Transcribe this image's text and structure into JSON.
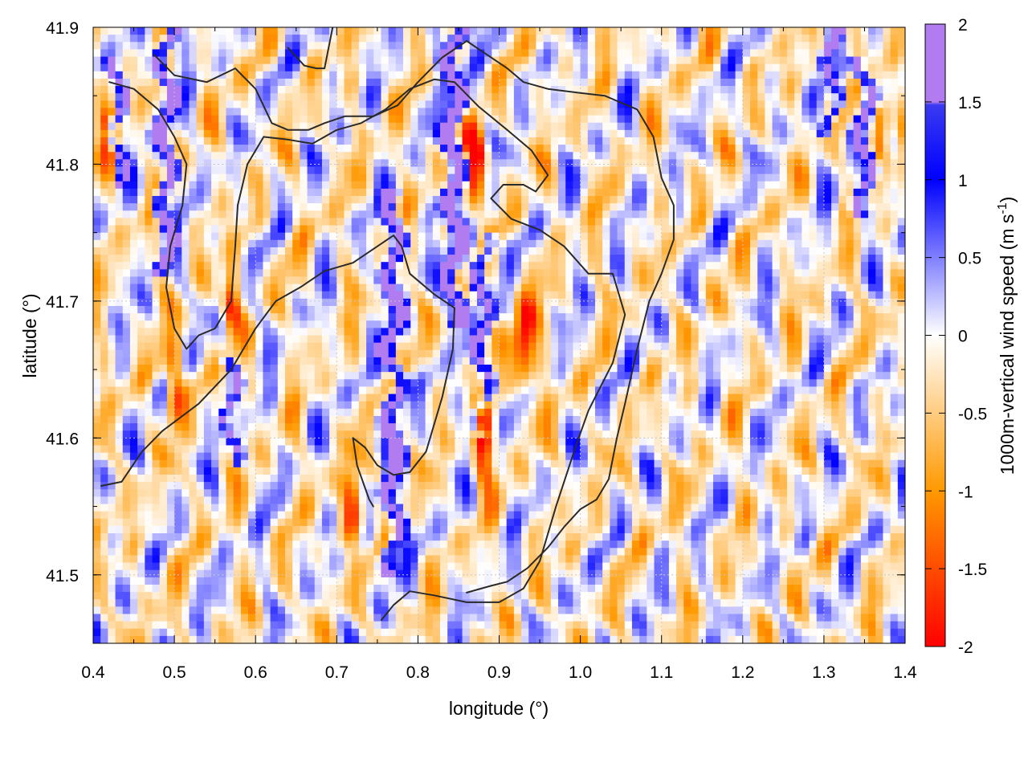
{
  "chart_data": {
    "type": "heatmap",
    "xlabel": "longitude (°)",
    "ylabel": "latitude (°)",
    "colorbar_label_text": "1000m-vertical wind speed (m s",
    "colorbar_label_sup": "-1",
    "colorbar_label_close": ")",
    "xlim": [
      0.4,
      1.4
    ],
    "ylim": [
      41.45,
      41.9
    ],
    "x_ticks": [
      0.4,
      0.5,
      0.6,
      0.7,
      0.8,
      0.9,
      1.0,
      1.1,
      1.2,
      1.3,
      1.4
    ],
    "x_tick_labels": [
      "0.4",
      "0.5",
      "0.6",
      "0.7",
      "0.8",
      "0.9",
      "1.0",
      "1.1",
      "1.2",
      "1.3",
      "1.4"
    ],
    "y_ticks": [
      41.5,
      41.6,
      41.7,
      41.8,
      41.9
    ],
    "y_tick_labels": [
      "41.5",
      "41.6",
      "41.7",
      "41.8",
      "41.9"
    ],
    "colorbar_range": [
      -2,
      2
    ],
    "colorbar_ticks": [
      2,
      1.5,
      1,
      0.5,
      0,
      -0.5,
      -1,
      -1.5,
      -2
    ],
    "colorbar_tick_labels": [
      "2",
      "1.5",
      "1",
      "0.5",
      "0",
      "-0.5",
      "-1",
      "-1.5",
      "-2"
    ],
    "colormap": [
      {
        "value": -2.0,
        "color": "#ff0000"
      },
      {
        "value": -1.0,
        "color": "#ff9900"
      },
      {
        "value": 0.0,
        "color": "#ffffff"
      },
      {
        "value": 1.0,
        "color": "#0000ff"
      },
      {
        "value": 1.5,
        "color": "#3a3af0"
      },
      {
        "value": 2.0,
        "color": "#b07cf0"
      }
    ],
    "grid": true,
    "contours": [
      [
        [
          0.41,
          41.565
        ],
        [
          0.435,
          41.568
        ],
        [
          0.46,
          41.59
        ],
        [
          0.485,
          41.605
        ],
        [
          0.53,
          41.625
        ],
        [
          0.57,
          41.65
        ],
        [
          0.6,
          41.68
        ],
        [
          0.625,
          41.7
        ],
        [
          0.655,
          41.71
        ],
        [
          0.685,
          41.722
        ],
        [
          0.72,
          41.728
        ],
        [
          0.75,
          41.74
        ],
        [
          0.77,
          41.748
        ],
        [
          0.78,
          41.74
        ],
        [
          0.79,
          41.72
        ],
        [
          0.82,
          41.705
        ],
        [
          0.845,
          41.695
        ],
        [
          0.843,
          41.665
        ],
        [
          0.83,
          41.63
        ],
        [
          0.81,
          41.59
        ],
        [
          0.79,
          41.575
        ],
        [
          0.77,
          41.573
        ],
        [
          0.75,
          41.58
        ],
        [
          0.735,
          41.593
        ],
        [
          0.72,
          41.6
        ],
        [
          0.725,
          41.58
        ],
        [
          0.74,
          41.555
        ],
        [
          0.745,
          41.55
        ]
      ],
      [
        [
          0.42,
          41.86
        ],
        [
          0.45,
          41.855
        ],
        [
          0.48,
          41.84
        ],
        [
          0.5,
          41.82
        ],
        [
          0.515,
          41.8
        ],
        [
          0.51,
          41.77
        ],
        [
          0.495,
          41.74
        ],
        [
          0.49,
          41.71
        ],
        [
          0.5,
          41.68
        ],
        [
          0.515,
          41.665
        ],
        [
          0.53,
          41.675
        ],
        [
          0.55,
          41.68
        ],
        [
          0.57,
          41.7
        ],
        [
          0.575,
          41.74
        ],
        [
          0.578,
          41.77
        ],
        [
          0.59,
          41.8
        ],
        [
          0.61,
          41.82
        ],
        [
          0.64,
          41.818
        ],
        [
          0.67,
          41.815
        ],
        [
          0.7,
          41.825
        ],
        [
          0.73,
          41.83
        ],
        [
          0.76,
          41.84
        ],
        [
          0.79,
          41.855
        ],
        [
          0.82,
          41.862
        ],
        [
          0.845,
          41.86
        ],
        [
          0.875,
          41.842
        ],
        [
          0.91,
          41.825
        ],
        [
          0.94,
          41.81
        ],
        [
          0.96,
          41.792
        ],
        [
          0.945,
          41.78
        ],
        [
          0.93,
          41.785
        ],
        [
          0.905,
          41.785
        ],
        [
          0.89,
          41.775
        ],
        [
          0.915,
          41.76
        ],
        [
          0.95,
          41.752
        ],
        [
          0.98,
          41.74
        ],
        [
          1.01,
          41.72
        ],
        [
          1.04,
          41.72
        ],
        [
          1.055,
          41.69
        ],
        [
          1.04,
          41.655
        ],
        [
          1.01,
          41.62
        ],
        [
          0.995,
          41.595
        ],
        [
          0.97,
          41.55
        ],
        [
          0.95,
          41.51
        ],
        [
          0.93,
          41.49
        ],
        [
          0.9,
          41.48
        ],
        [
          0.86,
          41.48
        ],
        [
          0.82,
          41.485
        ],
        [
          0.79,
          41.488
        ],
        [
          0.77,
          41.478
        ],
        [
          0.755,
          41.467
        ]
      ],
      [
        [
          0.475,
          41.88
        ],
        [
          0.5,
          41.865
        ],
        [
          0.54,
          41.86
        ],
        [
          0.575,
          41.87
        ],
        [
          0.6,
          41.855
        ],
        [
          0.62,
          41.83
        ],
        [
          0.64,
          41.825
        ],
        [
          0.665,
          41.825
        ],
        [
          0.685,
          41.83
        ],
        [
          0.71,
          41.835
        ],
        [
          0.745,
          41.835
        ],
        [
          0.775,
          41.843
        ],
        [
          0.8,
          41.86
        ],
        [
          0.83,
          41.878
        ],
        [
          0.86,
          41.89
        ],
        [
          0.885,
          41.88
        ],
        [
          0.91,
          41.87
        ],
        [
          0.93,
          41.86
        ],
        [
          0.96,
          41.855
        ],
        [
          1.0,
          41.852
        ],
        [
          1.03,
          41.85
        ],
        [
          1.07,
          41.84
        ],
        [
          1.09,
          41.82
        ],
        [
          1.1,
          41.79
        ],
        [
          1.115,
          41.77
        ],
        [
          1.115,
          41.745
        ],
        [
          1.1,
          41.72
        ],
        [
          1.085,
          41.7
        ],
        [
          1.07,
          41.665
        ],
        [
          1.055,
          41.625
        ],
        [
          1.045,
          41.6
        ],
        [
          1.035,
          41.57
        ],
        [
          1.02,
          41.555
        ],
        [
          1.0,
          41.548
        ],
        [
          0.98,
          41.535
        ],
        [
          0.96,
          41.52
        ],
        [
          0.935,
          41.505
        ],
        [
          0.91,
          41.495
        ],
        [
          0.89,
          41.492
        ],
        [
          0.86,
          41.487
        ]
      ],
      [
        [
          0.64,
          41.885
        ],
        [
          0.66,
          41.872
        ],
        [
          0.675,
          41.87
        ],
        [
          0.685,
          41.87
        ],
        [
          0.695,
          41.9
        ]
      ]
    ],
    "notes": "Field is an incoherent turbulence-like pattern; strongest updrafts (>2 m/s, purple) form north-south streaks near lon 0.49, 0.77, 0.84, 0.87, 1.35; strongest downdrafts (red, below -1.5 m/s) flank them near lon 0.57, 0.87, 0.93, 1.37."
  }
}
